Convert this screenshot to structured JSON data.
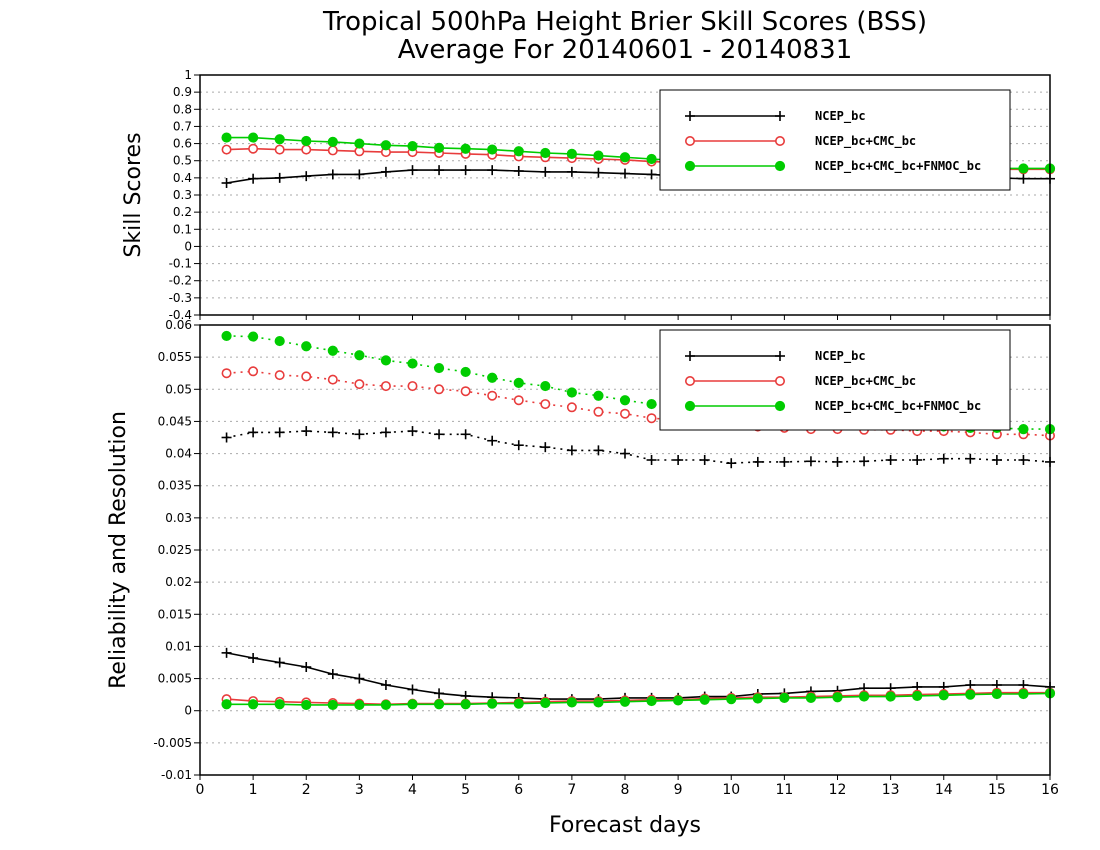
{
  "title_line1": "Tropical 500hPa Height Brier Skill Scores (BSS)",
  "title_line2": "Average For 20140601 - 20140831",
  "xlabel": "Forecast days",
  "colors": {
    "ncep": "#000000",
    "cmc": "#e83c3c",
    "fnmoc": "#00cc00",
    "grid": "#aaaaaa"
  },
  "legend": [
    "NCEP_bc",
    "NCEP_bc+CMC_bc",
    "NCEP_bc+CMC_bc+FNMOC_bc"
  ],
  "chart_data": [
    {
      "type": "line",
      "ylabel": "Skill Scores",
      "xlim": [
        0,
        16
      ],
      "ylim": [
        -0.4,
        1
      ],
      "xticks": [
        "0",
        "1",
        "2",
        "3",
        "4",
        "5",
        "6",
        "7",
        "8",
        "9",
        "10",
        "11",
        "12",
        "13",
        "14",
        "15",
        "16"
      ],
      "yticks": [
        "-0.4",
        "-0.3",
        "-0.2",
        "-0.1",
        "0",
        "0.1",
        "0.2",
        "0.3",
        "0.4",
        "0.5",
        "0.6",
        "0.7",
        "0.8",
        "0.9",
        "1"
      ],
      "x": [
        0.5,
        1,
        1.5,
        2,
        2.5,
        3,
        3.5,
        4,
        4.5,
        5,
        5.5,
        6,
        6.5,
        7,
        7.5,
        8,
        8.5,
        9,
        9.5,
        10,
        10.5,
        11,
        11.5,
        12,
        12.5,
        13,
        13.5,
        14,
        14.5,
        15,
        15.5,
        16
      ],
      "legend_position": "top-right",
      "grid": true,
      "series": [
        {
          "name": "NCEP_bc",
          "marker": "plus",
          "dotted": false,
          "values": [
            0.37,
            0.395,
            0.4,
            0.41,
            0.42,
            0.42,
            0.435,
            0.445,
            0.445,
            0.445,
            0.445,
            0.44,
            0.435,
            0.435,
            0.43,
            0.425,
            0.42,
            0.41,
            0.405,
            0.4,
            0.4,
            0.4,
            0.4,
            0.4,
            0.4,
            0.4,
            0.4,
            0.4,
            0.4,
            0.4,
            0.395,
            0.395
          ]
        },
        {
          "name": "NCEP_bc+CMC_bc",
          "marker": "circle",
          "dotted": false,
          "values": [
            0.565,
            0.57,
            0.565,
            0.565,
            0.56,
            0.555,
            0.55,
            0.55,
            0.545,
            0.54,
            0.535,
            0.525,
            0.52,
            0.515,
            0.51,
            0.505,
            0.495,
            0.49,
            0.485,
            0.48,
            0.475,
            0.47,
            0.47,
            0.465,
            0.46,
            0.46,
            0.455,
            0.455,
            0.455,
            0.45,
            0.45,
            0.45
          ]
        },
        {
          "name": "NCEP_bc+CMC_bc+FNMOC_bc",
          "marker": "dot",
          "dotted": false,
          "values": [
            0.635,
            0.635,
            0.625,
            0.615,
            0.61,
            0.6,
            0.59,
            0.585,
            0.575,
            0.57,
            0.565,
            0.555,
            0.545,
            0.54,
            0.53,
            0.52,
            0.51,
            0.5,
            0.495,
            0.49,
            0.485,
            0.48,
            0.475,
            0.47,
            0.465,
            0.465,
            0.46,
            0.46,
            0.455,
            0.455,
            0.455,
            0.455
          ]
        }
      ]
    },
    {
      "type": "line",
      "ylabel": "Reliability and Resolution",
      "xlim": [
        0,
        16
      ],
      "ylim": [
        -0.01,
        0.06
      ],
      "xticks": [
        "0",
        "1",
        "2",
        "3",
        "4",
        "5",
        "6",
        "7",
        "8",
        "9",
        "10",
        "11",
        "12",
        "13",
        "14",
        "15",
        "16"
      ],
      "yticks": [
        "-0.01",
        "-0.005",
        "0",
        "0.005",
        "0.01",
        "0.015",
        "0.02",
        "0.025",
        "0.03",
        "0.035",
        "0.04",
        "0.045",
        "0.05",
        "0.055",
        "0.06"
      ],
      "x": [
        0.5,
        1,
        1.5,
        2,
        2.5,
        3,
        3.5,
        4,
        4.5,
        5,
        5.5,
        6,
        6.5,
        7,
        7.5,
        8,
        8.5,
        9,
        9.5,
        10,
        10.5,
        11,
        11.5,
        12,
        12.5,
        13,
        13.5,
        14,
        14.5,
        15,
        15.5,
        16
      ],
      "legend_position": "top-right",
      "grid": true,
      "series": [
        {
          "name": "NCEP_bc",
          "group": "resolution",
          "marker": "plus",
          "dotted": true,
          "values": [
            0.0425,
            0.0433,
            0.0433,
            0.0435,
            0.0433,
            0.043,
            0.0433,
            0.0435,
            0.043,
            0.043,
            0.042,
            0.0413,
            0.041,
            0.0405,
            0.0405,
            0.04,
            0.039,
            0.039,
            0.039,
            0.0385,
            0.0387,
            0.0387,
            0.0388,
            0.0387,
            0.0388,
            0.039,
            0.039,
            0.0392,
            0.0392,
            0.039,
            0.039,
            0.0387
          ]
        },
        {
          "name": "NCEP_bc+CMC_bc",
          "group": "resolution",
          "marker": "circle",
          "dotted": true,
          "values": [
            0.0525,
            0.0528,
            0.0522,
            0.052,
            0.0515,
            0.0508,
            0.0505,
            0.0505,
            0.05,
            0.0497,
            0.049,
            0.0483,
            0.0477,
            0.0472,
            0.0465,
            0.0462,
            0.0455,
            0.0452,
            0.0448,
            0.0445,
            0.0442,
            0.044,
            0.0438,
            0.0438,
            0.0437,
            0.0437,
            0.0435,
            0.0435,
            0.0433,
            0.043,
            0.043,
            0.0428
          ]
        },
        {
          "name": "NCEP_bc+CMC_bc+FNMOC_bc",
          "group": "resolution",
          "marker": "dot",
          "dotted": true,
          "values": [
            0.0583,
            0.0582,
            0.0575,
            0.0567,
            0.056,
            0.0553,
            0.0545,
            0.054,
            0.0533,
            0.0527,
            0.0518,
            0.051,
            0.0505,
            0.0495,
            0.049,
            0.0483,
            0.0477,
            0.047,
            0.0465,
            0.046,
            0.0457,
            0.0453,
            0.045,
            0.0448,
            0.0447,
            0.0445,
            0.0443,
            0.0442,
            0.044,
            0.044,
            0.0438,
            0.0438
          ]
        },
        {
          "name": "NCEP_bc",
          "group": "reliability",
          "marker": "plus",
          "dotted": false,
          "values": [
            0.009,
            0.0082,
            0.0075,
            0.0068,
            0.0057,
            0.005,
            0.004,
            0.0033,
            0.0027,
            0.0023,
            0.0021,
            0.002,
            0.0018,
            0.0018,
            0.0018,
            0.002,
            0.002,
            0.002,
            0.0022,
            0.0022,
            0.0026,
            0.0027,
            0.003,
            0.0031,
            0.0035,
            0.0035,
            0.0037,
            0.0037,
            0.004,
            0.004,
            0.004,
            0.0037
          ]
        },
        {
          "name": "NCEP_bc+CMC_bc",
          "group": "reliability",
          "marker": "circle",
          "dotted": false,
          "values": [
            0.0018,
            0.0015,
            0.0014,
            0.0013,
            0.0012,
            0.0011,
            0.001,
            0.0011,
            0.0011,
            0.0011,
            0.0012,
            0.0013,
            0.0014,
            0.0015,
            0.0015,
            0.0016,
            0.0017,
            0.0017,
            0.0019,
            0.002,
            0.0021,
            0.0021,
            0.0022,
            0.0023,
            0.0024,
            0.0024,
            0.0025,
            0.0026,
            0.0027,
            0.0028,
            0.0028,
            0.0028
          ]
        },
        {
          "name": "NCEP_bc+CMC_bc+FNMOC_bc",
          "group": "reliability",
          "marker": "dot",
          "dotted": false,
          "values": [
            0.001,
            0.001,
            0.001,
            0.0009,
            0.0009,
            0.0009,
            0.0009,
            0.001,
            0.001,
            0.001,
            0.0011,
            0.0011,
            0.0012,
            0.0013,
            0.0013,
            0.0014,
            0.0015,
            0.0016,
            0.0017,
            0.0018,
            0.0019,
            0.002,
            0.002,
            0.0021,
            0.0022,
            0.0022,
            0.0023,
            0.0024,
            0.0025,
            0.0026,
            0.0026,
            0.0027
          ]
        }
      ]
    }
  ]
}
